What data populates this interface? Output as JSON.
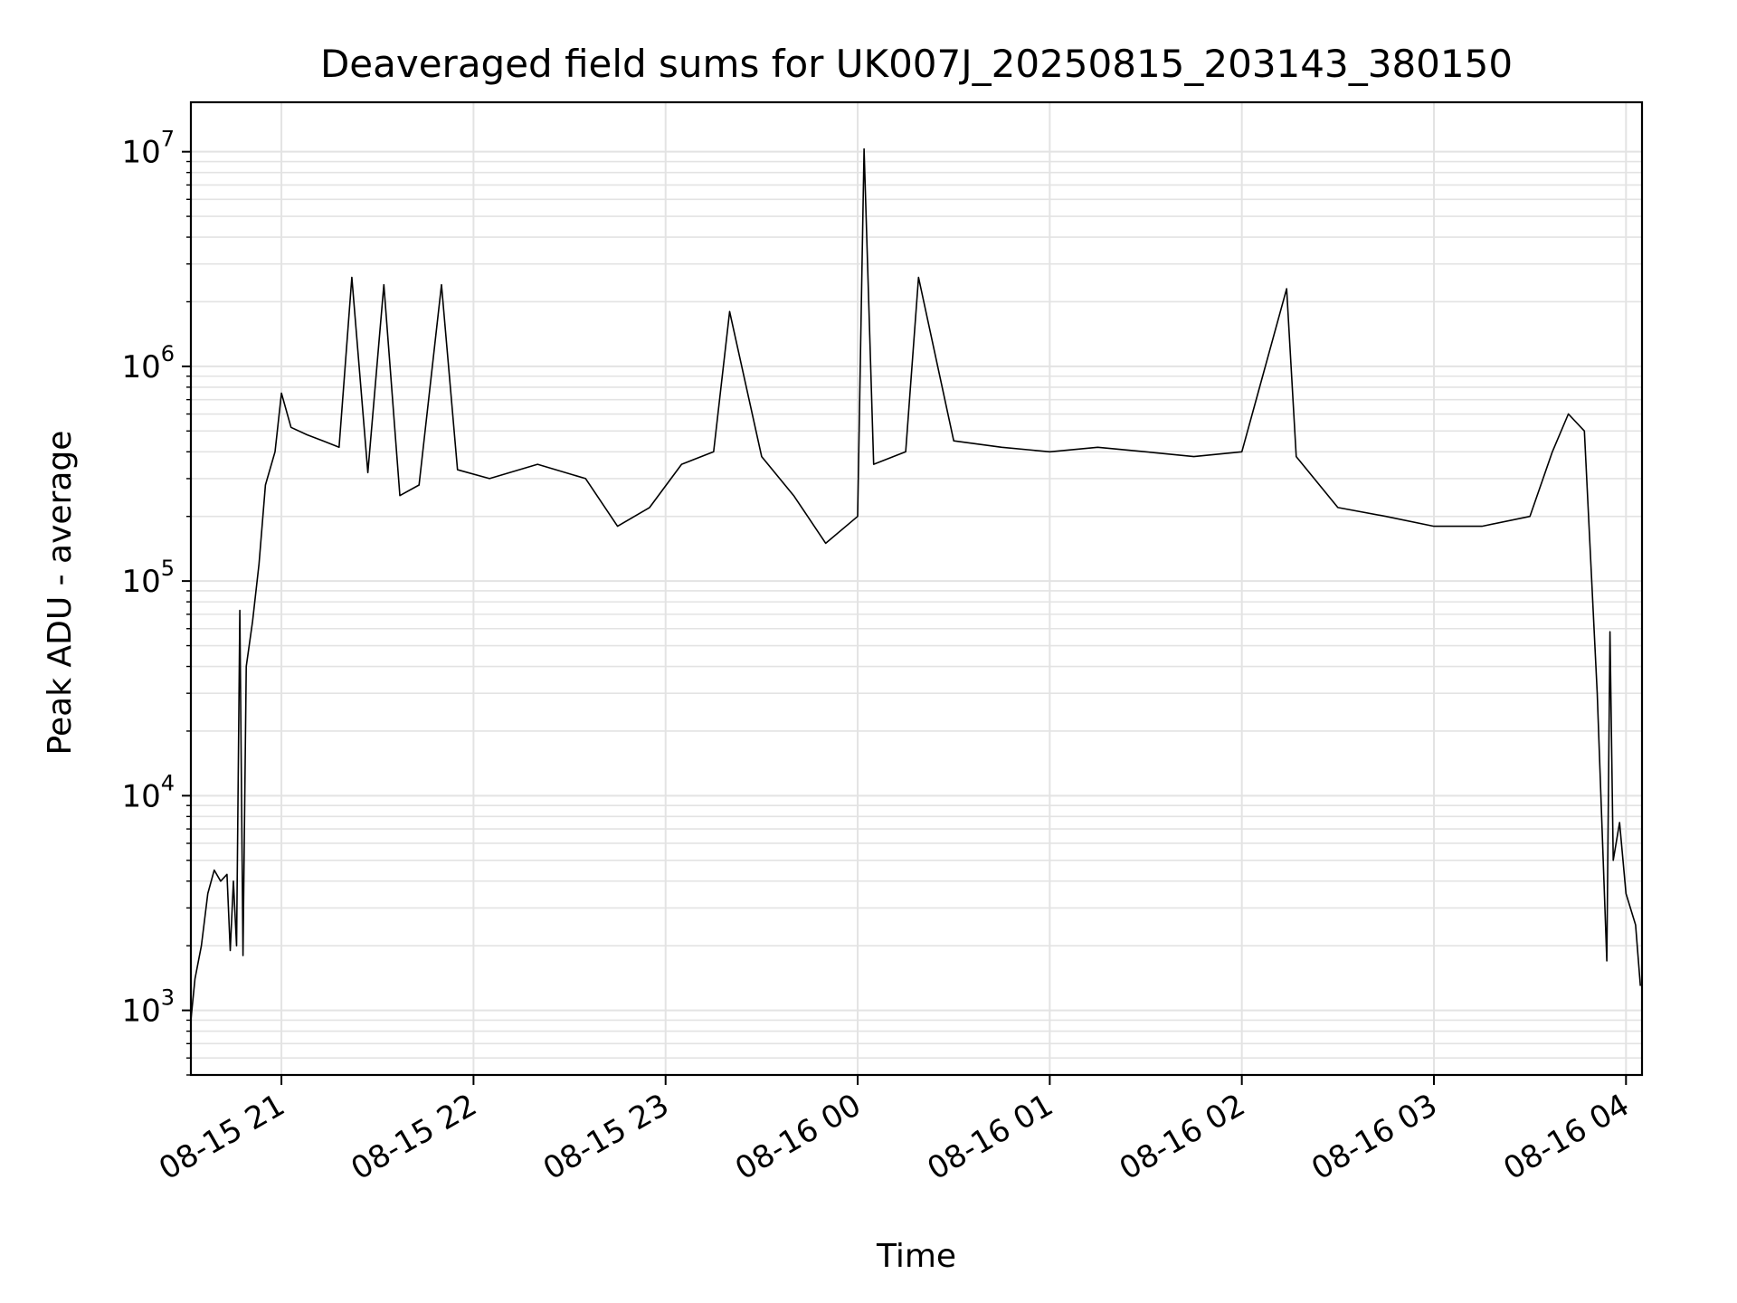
{
  "chart_data": {
    "type": "line",
    "title": "Deaveraged field sums for UK007J_20250815_203143_380150",
    "xlabel": "Time",
    "ylabel": "Peak ADU - average",
    "yscale": "log",
    "ylim": [
      500,
      17000000
    ],
    "xlim": [
      "2025-08-15 20:31:43",
      "2025-08-16 04:05:00"
    ],
    "grid": true,
    "colors": {
      "line": "#000000",
      "grid": "#e3e3e3",
      "axes": "#000000"
    },
    "x_ticks": [
      {
        "label": "08-15 21",
        "time": "2025-08-15 21:00"
      },
      {
        "label": "08-15 22",
        "time": "2025-08-15 22:00"
      },
      {
        "label": "08-15 23",
        "time": "2025-08-15 23:00"
      },
      {
        "label": "08-16 00",
        "time": "2025-08-16 00:00"
      },
      {
        "label": "08-16 01",
        "time": "2025-08-16 01:00"
      },
      {
        "label": "08-16 02",
        "time": "2025-08-16 02:00"
      },
      {
        "label": "08-16 03",
        "time": "2025-08-16 03:00"
      },
      {
        "label": "08-16 04",
        "time": "2025-08-16 04:00"
      }
    ],
    "y_ticks": [
      {
        "base": "10",
        "exp": "3",
        "value": 1000
      },
      {
        "base": "10",
        "exp": "4",
        "value": 10000
      },
      {
        "base": "10",
        "exp": "5",
        "value": 100000
      },
      {
        "base": "10",
        "exp": "6",
        "value": 1000000
      },
      {
        "base": "10",
        "exp": "7",
        "value": 10000000
      }
    ],
    "series": [
      {
        "color": "#000000",
        "points": [
          [
            "2025-08-15 20:31:43",
            900
          ],
          [
            "2025-08-15 20:33",
            1400
          ],
          [
            "2025-08-15 20:35",
            2000
          ],
          [
            "2025-08-15 20:37",
            3500
          ],
          [
            "2025-08-15 20:39",
            4500
          ],
          [
            "2025-08-15 20:41",
            4000
          ],
          [
            "2025-08-15 20:43",
            4300
          ],
          [
            "2025-08-15 20:44",
            1900
          ],
          [
            "2025-08-15 20:45",
            4000
          ],
          [
            "2025-08-15 20:46",
            2000
          ],
          [
            "2025-08-15 20:47",
            73000
          ],
          [
            "2025-08-15 20:48",
            1800
          ],
          [
            "2025-08-15 20:49",
            40000
          ],
          [
            "2025-08-15 20:51",
            65000
          ],
          [
            "2025-08-15 20:53",
            120000
          ],
          [
            "2025-08-15 20:55",
            280000
          ],
          [
            "2025-08-15 20:58",
            400000
          ],
          [
            "2025-08-15 21:00",
            750000
          ],
          [
            "2025-08-15 21:03",
            520000
          ],
          [
            "2025-08-15 21:08",
            480000
          ],
          [
            "2025-08-15 21:13",
            450000
          ],
          [
            "2025-08-15 21:18",
            420000
          ],
          [
            "2025-08-15 21:22",
            2600000
          ],
          [
            "2025-08-15 21:27",
            320000
          ],
          [
            "2025-08-15 21:32",
            2400000
          ],
          [
            "2025-08-15 21:37",
            250000
          ],
          [
            "2025-08-15 21:43",
            280000
          ],
          [
            "2025-08-15 21:50",
            2400000
          ],
          [
            "2025-08-15 21:55",
            330000
          ],
          [
            "2025-08-15 22:05",
            300000
          ],
          [
            "2025-08-15 22:20",
            350000
          ],
          [
            "2025-08-15 22:35",
            300000
          ],
          [
            "2025-08-15 22:45",
            180000
          ],
          [
            "2025-08-15 22:55",
            220000
          ],
          [
            "2025-08-15 23:05",
            350000
          ],
          [
            "2025-08-15 23:15",
            400000
          ],
          [
            "2025-08-15 23:20",
            1800000
          ],
          [
            "2025-08-15 23:30",
            380000
          ],
          [
            "2025-08-15 23:40",
            250000
          ],
          [
            "2025-08-15 23:50",
            150000
          ],
          [
            "2025-08-16 00:00",
            200000
          ],
          [
            "2025-08-16 00:02",
            10300000
          ],
          [
            "2025-08-16 00:05",
            350000
          ],
          [
            "2025-08-16 00:15",
            400000
          ],
          [
            "2025-08-16 00:19",
            2600000
          ],
          [
            "2025-08-16 00:30",
            450000
          ],
          [
            "2025-08-16 00:45",
            420000
          ],
          [
            "2025-08-16 01:00",
            400000
          ],
          [
            "2025-08-16 01:15",
            420000
          ],
          [
            "2025-08-16 01:30",
            400000
          ],
          [
            "2025-08-16 01:45",
            380000
          ],
          [
            "2025-08-16 02:00",
            400000
          ],
          [
            "2025-08-16 02:14",
            2300000
          ],
          [
            "2025-08-16 02:17",
            380000
          ],
          [
            "2025-08-16 02:30",
            220000
          ],
          [
            "2025-08-16 02:45",
            200000
          ],
          [
            "2025-08-16 03:00",
            180000
          ],
          [
            "2025-08-16 03:15",
            180000
          ],
          [
            "2025-08-16 03:30",
            200000
          ],
          [
            "2025-08-16 03:37",
            400000
          ],
          [
            "2025-08-16 03:42",
            600000
          ],
          [
            "2025-08-16 03:47",
            500000
          ],
          [
            "2025-08-16 03:51",
            30000
          ],
          [
            "2025-08-16 03:54",
            1700
          ],
          [
            "2025-08-16 03:55",
            58000
          ],
          [
            "2025-08-16 03:56",
            5000
          ],
          [
            "2025-08-16 03:58",
            7500
          ],
          [
            "2025-08-16 04:00",
            3500
          ],
          [
            "2025-08-16 04:03",
            2500
          ],
          [
            "2025-08-16 04:04:30",
            1300
          ]
        ]
      }
    ]
  }
}
